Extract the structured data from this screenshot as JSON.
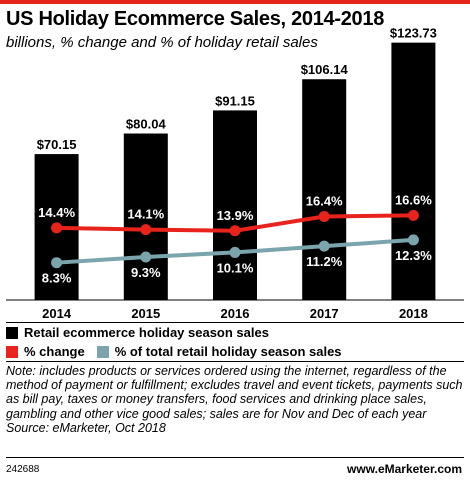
{
  "colors": {
    "accent_bar": "#e4251b",
    "bar": "#000000",
    "pct_change": "#e8231c",
    "pct_total": "#7aa5ad"
  },
  "header": {
    "title": "US Holiday Ecommerce Sales, 2014-2018",
    "subtitle": "billions, % change and % of holiday retail sales"
  },
  "chart_data": {
    "type": "bar",
    "categories": [
      "2014",
      "2015",
      "2016",
      "2017",
      "2018"
    ],
    "series": [
      {
        "name": "Retail ecommerce holiday season sales",
        "type": "bar",
        "values": [
          70.15,
          80.04,
          91.15,
          106.14,
          123.73
        ],
        "labels": [
          "$70.15",
          "$80.04",
          "$91.15",
          "$106.14",
          "$123.73"
        ]
      },
      {
        "name": "% change",
        "type": "line",
        "values": [
          14.4,
          14.1,
          13.9,
          16.4,
          16.6
        ],
        "labels": [
          "14.4%",
          "14.1%",
          "13.9%",
          "16.4%",
          "16.6%"
        ]
      },
      {
        "name": "% of total retail holiday season sales",
        "type": "line",
        "values": [
          8.3,
          9.3,
          10.1,
          11.2,
          12.3
        ],
        "labels": [
          "8.3%",
          "9.3%",
          "10.1%",
          "11.2%",
          "12.3%"
        ]
      }
    ],
    "grid": false,
    "legend_position": "bottom"
  },
  "legend": {
    "items": [
      "Retail ecommerce holiday season sales",
      "% change",
      "% of total retail holiday season sales"
    ]
  },
  "note": {
    "text": "Note: includes products or services ordered using the internet, regardless of the method of payment or fulfillment; excludes travel and event tickets, payments such as bill pay, taxes or money transfers, food services and drinking place sales, gambling and other vice good sales; sales are for Nov and Dec of each year",
    "source": "Source: eMarketer, Oct 2018"
  },
  "footer": {
    "chart_id": "242688",
    "brand_prefix": "www.",
    "brand_name": "eMarketer",
    "brand_suffix": ".com"
  }
}
